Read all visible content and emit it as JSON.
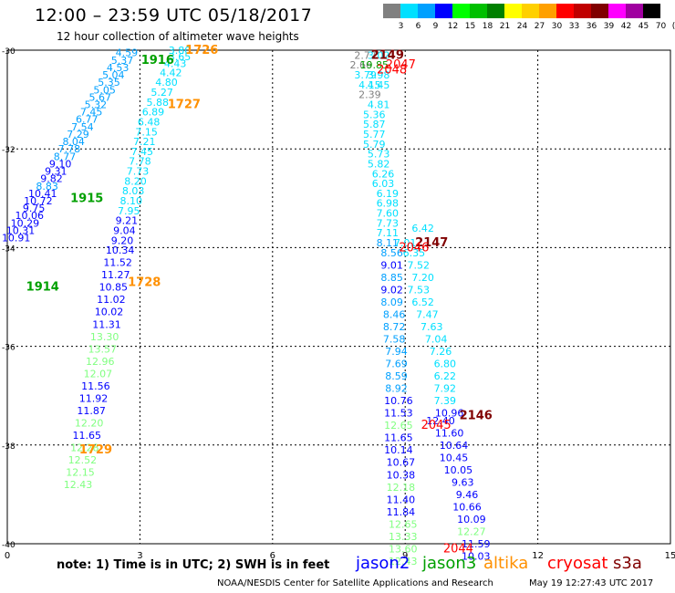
{
  "title": "12:00 – 23:59 UTC 05/18/2017",
  "subtitle": "12 hour collection of altimeter wave heights",
  "colorbar": {
    "labels": [
      "3",
      "6",
      "9",
      "12",
      "15",
      "18",
      "21",
      "24",
      "27",
      "30",
      "33",
      "36",
      "39",
      "42",
      "45",
      "70",
      "(ft)"
    ],
    "colors": [
      "#808080",
      "#00e0ff",
      "#00a0ff",
      "#0000ff",
      "#00ff00",
      "#00c000",
      "#008000",
      "#ffff00",
      "#ffd000",
      "#ffa000",
      "#ff0000",
      "#c00000",
      "#800000",
      "#ff00ff",
      "#a000a0",
      "#000000"
    ]
  },
  "map": {
    "x_ticks": [
      "0",
      "3",
      "6",
      "9",
      "12",
      "15"
    ],
    "y_ticks": [
      "-30",
      "-32",
      "-34",
      "-36",
      "-38",
      "-40"
    ]
  },
  "tracks": [
    {
      "satellite": "jason3",
      "color": "#00a000",
      "labels": [
        {
          "text": "1916",
          "x": 3.4,
          "y": -30.2,
          "bold": true
        },
        {
          "text": "1915",
          "x": 1.8,
          "y": -33.0,
          "bold": true
        },
        {
          "text": "1914",
          "x": 0.8,
          "y": -34.8,
          "bold": true
        }
      ]
    },
    {
      "satellite": "altika",
      "color": "#ff9000",
      "labels": [
        {
          "text": "1726",
          "x": 4.4,
          "y": -30.0,
          "bold": true
        },
        {
          "text": "1727",
          "x": 4.0,
          "y": -31.1,
          "bold": true
        },
        {
          "text": "1728",
          "x": 3.1,
          "y": -34.7,
          "bold": true
        },
        {
          "text": "1729",
          "x": 2.0,
          "y": -38.1,
          "bold": true
        }
      ]
    },
    {
      "satellite": "s3a",
      "color": "#800000",
      "labels": [
        {
          "text": "2149",
          "x": 8.6,
          "y": -30.1,
          "bold": true
        },
        {
          "text": "2147",
          "x": 9.6,
          "y": -33.9,
          "bold": true
        },
        {
          "text": "2146",
          "x": 10.6,
          "y": -37.4,
          "bold": true
        }
      ]
    },
    {
      "satellite": "cryosat",
      "color": "#ff0000",
      "labels": [
        {
          "text": "2048",
          "x": 8.7,
          "y": -30.4,
          "bold": false
        },
        {
          "text": "2047",
          "x": 8.9,
          "y": -30.3,
          "bold": false
        },
        {
          "text": "2046",
          "x": 9.2,
          "y": -34.0,
          "bold": false
        },
        {
          "text": "2045",
          "x": 9.7,
          "y": -37.6,
          "bold": false
        },
        {
          "text": "2044",
          "x": 10.2,
          "y": -40.1,
          "bold": false
        }
      ]
    }
  ],
  "points": [
    {
      "v": "4.59",
      "x": 2.7,
      "y": -30.05,
      "c": "#00a0ff"
    },
    {
      "v": "5.37",
      "x": 2.6,
      "y": -30.2,
      "c": "#00a0ff"
    },
    {
      "v": "4.53",
      "x": 2.5,
      "y": -30.35,
      "c": "#00a0ff"
    },
    {
      "v": "5.04",
      "x": 2.4,
      "y": -30.5,
      "c": "#00a0ff"
    },
    {
      "v": "5.35",
      "x": 2.3,
      "y": -30.65,
      "c": "#00a0ff"
    },
    {
      "v": "5.05",
      "x": 2.2,
      "y": -30.8,
      "c": "#00a0ff"
    },
    {
      "v": "5.67",
      "x": 2.1,
      "y": -30.95,
      "c": "#00a0ff"
    },
    {
      "v": "5.32",
      "x": 2.0,
      "y": -31.1,
      "c": "#00a0ff"
    },
    {
      "v": "7.45",
      "x": 1.9,
      "y": -31.25,
      "c": "#00a0ff"
    },
    {
      "v": "6.77",
      "x": 1.8,
      "y": -31.4,
      "c": "#00a0ff"
    },
    {
      "v": "7.54",
      "x": 1.7,
      "y": -31.55,
      "c": "#00a0ff"
    },
    {
      "v": "7.29",
      "x": 1.6,
      "y": -31.7,
      "c": "#00a0ff"
    },
    {
      "v": "8.04",
      "x": 1.5,
      "y": -31.85,
      "c": "#00a0ff"
    },
    {
      "v": "7.78",
      "x": 1.4,
      "y": -32.0,
      "c": "#00a0ff"
    },
    {
      "v": "8.77",
      "x": 1.3,
      "y": -32.15,
      "c": "#00a0ff"
    },
    {
      "v": "9.10",
      "x": 1.2,
      "y": -32.3,
      "c": "#0000ff"
    },
    {
      "v": "9.31",
      "x": 1.1,
      "y": -32.45,
      "c": "#0000ff"
    },
    {
      "v": "9.82",
      "x": 1.0,
      "y": -32.6,
      "c": "#0000ff"
    },
    {
      "v": "8.83",
      "x": 0.9,
      "y": -32.75,
      "c": "#00a0ff"
    },
    {
      "v": "10.41",
      "x": 0.8,
      "y": -32.9,
      "c": "#0000ff"
    },
    {
      "v": "10.72",
      "x": 0.7,
      "y": -33.05,
      "c": "#0000ff"
    },
    {
      "v": "9.75",
      "x": 0.6,
      "y": -33.2,
      "c": "#0000ff"
    },
    {
      "v": "10.06",
      "x": 0.5,
      "y": -33.35,
      "c": "#0000ff"
    },
    {
      "v": "10.29",
      "x": 0.4,
      "y": -33.5,
      "c": "#0000ff"
    },
    {
      "v": "10.31",
      "x": 0.3,
      "y": -33.65,
      "c": "#0000ff"
    },
    {
      "v": "10.91",
      "x": 0.2,
      "y": -33.8,
      "c": "#0000ff"
    },
    {
      "v": "3.80",
      "x": 3.9,
      "y": -30.0,
      "c": "#00e0ff"
    },
    {
      "v": "3.65",
      "x": 3.9,
      "y": -30.13,
      "c": "#00e0ff"
    },
    {
      "v": "4.43",
      "x": 3.8,
      "y": -30.27,
      "c": "#00e0ff"
    },
    {
      "v": "4.42",
      "x": 3.7,
      "y": -30.45,
      "c": "#00e0ff"
    },
    {
      "v": "4.80",
      "x": 3.6,
      "y": -30.65,
      "c": "#00e0ff"
    },
    {
      "v": "5.27",
      "x": 3.5,
      "y": -30.85,
      "c": "#00e0ff"
    },
    {
      "v": "5.88",
      "x": 3.4,
      "y": -31.05,
      "c": "#00e0ff"
    },
    {
      "v": "6.89",
      "x": 3.3,
      "y": -31.25,
      "c": "#00e0ff"
    },
    {
      "v": "6.48",
      "x": 3.2,
      "y": -31.45,
      "c": "#00e0ff"
    },
    {
      "v": "7.15",
      "x": 3.15,
      "y": -31.65,
      "c": "#00e0ff"
    },
    {
      "v": "7.21",
      "x": 3.1,
      "y": -31.85,
      "c": "#00e0ff"
    },
    {
      "v": "7.45",
      "x": 3.05,
      "y": -32.05,
      "c": "#00e0ff"
    },
    {
      "v": "7.78",
      "x": 3.0,
      "y": -32.25,
      "c": "#00e0ff"
    },
    {
      "v": "7.73",
      "x": 2.95,
      "y": -32.45,
      "c": "#00e0ff"
    },
    {
      "v": "8.20",
      "x": 2.9,
      "y": -32.65,
      "c": "#00e0ff"
    },
    {
      "v": "8.03",
      "x": 2.85,
      "y": -32.85,
      "c": "#00e0ff"
    },
    {
      "v": "8.10",
      "x": 2.8,
      "y": -33.05,
      "c": "#00e0ff"
    },
    {
      "v": "7.95",
      "x": 2.75,
      "y": -33.25,
      "c": "#00e0ff"
    },
    {
      "v": "9.21",
      "x": 2.7,
      "y": -33.45,
      "c": "#0000ff"
    },
    {
      "v": "9.04",
      "x": 2.65,
      "y": -33.65,
      "c": "#0000ff"
    },
    {
      "v": "9.20",
      "x": 2.6,
      "y": -33.85,
      "c": "#0000ff"
    },
    {
      "v": "10.34",
      "x": 2.55,
      "y": -34.05,
      "c": "#0000ff"
    },
    {
      "v": "11.52",
      "x": 2.5,
      "y": -34.3,
      "c": "#0000ff"
    },
    {
      "v": "11.27",
      "x": 2.45,
      "y": -34.55,
      "c": "#0000ff"
    },
    {
      "v": "10.85",
      "x": 2.4,
      "y": -34.8,
      "c": "#0000ff"
    },
    {
      "v": "11.02",
      "x": 2.35,
      "y": -35.05,
      "c": "#0000ff"
    },
    {
      "v": "10.02",
      "x": 2.3,
      "y": -35.3,
      "c": "#0000ff"
    },
    {
      "v": "11.31",
      "x": 2.25,
      "y": -35.55,
      "c": "#0000ff"
    },
    {
      "v": "13.30",
      "x": 2.2,
      "y": -35.8,
      "c": "#80ff80"
    },
    {
      "v": "13.57",
      "x": 2.15,
      "y": -36.05,
      "c": "#80ff80"
    },
    {
      "v": "12.96",
      "x": 2.1,
      "y": -36.3,
      "c": "#80ff80"
    },
    {
      "v": "12.07",
      "x": 2.05,
      "y": -36.55,
      "c": "#80ff80"
    },
    {
      "v": "11.56",
      "x": 2.0,
      "y": -36.8,
      "c": "#0000ff"
    },
    {
      "v": "11.92",
      "x": 1.95,
      "y": -37.05,
      "c": "#0000ff"
    },
    {
      "v": "11.87",
      "x": 1.9,
      "y": -37.3,
      "c": "#0000ff"
    },
    {
      "v": "12.20",
      "x": 1.85,
      "y": -37.55,
      "c": "#80ff80"
    },
    {
      "v": "11.65",
      "x": 1.8,
      "y": -37.8,
      "c": "#0000ff"
    },
    {
      "v": "12.28",
      "x": 1.75,
      "y": -38.05,
      "c": "#80ff80"
    },
    {
      "v": "12.52",
      "x": 1.7,
      "y": -38.3,
      "c": "#80ff80"
    },
    {
      "v": "12.15",
      "x": 1.65,
      "y": -38.55,
      "c": "#80ff80"
    },
    {
      "v": "12.43",
      "x": 1.6,
      "y": -38.8,
      "c": "#80ff80"
    },
    {
      "v": "2.77",
      "x": 8.1,
      "y": -30.1,
      "c": "#808080"
    },
    {
      "v": "3.02",
      "x": 8.4,
      "y": -30.1,
      "c": "#00e0ff"
    },
    {
      "v": "2.66",
      "x": 8.0,
      "y": -30.3,
      "c": "#808080"
    },
    {
      "v": "19.85",
      "x": 8.3,
      "y": -30.3,
      "c": "#00a000"
    },
    {
      "v": "3.79",
      "x": 8.1,
      "y": -30.5,
      "c": "#00e0ff"
    },
    {
      "v": "3.98",
      "x": 8.4,
      "y": -30.5,
      "c": "#00e0ff"
    },
    {
      "v": "4.15",
      "x": 8.2,
      "y": -30.7,
      "c": "#00e0ff"
    },
    {
      "v": "4.45",
      "x": 8.4,
      "y": -30.7,
      "c": "#00e0ff"
    },
    {
      "v": "2.39",
      "x": 8.2,
      "y": -30.9,
      "c": "#808080"
    },
    {
      "v": "4.81",
      "x": 8.4,
      "y": -31.1,
      "c": "#00e0ff"
    },
    {
      "v": "5.36",
      "x": 8.3,
      "y": -31.3,
      "c": "#00e0ff"
    },
    {
      "v": "5.87",
      "x": 8.3,
      "y": -31.5,
      "c": "#00e0ff"
    },
    {
      "v": "5.77",
      "x": 8.3,
      "y": -31.7,
      "c": "#00e0ff"
    },
    {
      "v": "5.79",
      "x": 8.3,
      "y": -31.9,
      "c": "#00e0ff"
    },
    {
      "v": "5.73",
      "x": 8.4,
      "y": -32.1,
      "c": "#00e0ff"
    },
    {
      "v": "5.82",
      "x": 8.4,
      "y": -32.3,
      "c": "#00e0ff"
    },
    {
      "v": "6.26",
      "x": 8.5,
      "y": -32.5,
      "c": "#00e0ff"
    },
    {
      "v": "6.03",
      "x": 8.5,
      "y": -32.7,
      "c": "#00e0ff"
    },
    {
      "v": "6.19",
      "x": 8.6,
      "y": -32.9,
      "c": "#00e0ff"
    },
    {
      "v": "6.98",
      "x": 8.6,
      "y": -33.1,
      "c": "#00e0ff"
    },
    {
      "v": "7.60",
      "x": 8.6,
      "y": -33.3,
      "c": "#00e0ff"
    },
    {
      "v": "7.73",
      "x": 8.6,
      "y": -33.5,
      "c": "#00e0ff"
    },
    {
      "v": "7.11",
      "x": 8.6,
      "y": -33.7,
      "c": "#00e0ff"
    },
    {
      "v": "8.11",
      "x": 8.6,
      "y": -33.9,
      "c": "#00a0ff"
    },
    {
      "v": "8.56",
      "x": 8.7,
      "y": -34.1,
      "c": "#00a0ff"
    },
    {
      "v": "9.01",
      "x": 8.7,
      "y": -34.35,
      "c": "#0000ff"
    },
    {
      "v": "8.85",
      "x": 8.7,
      "y": -34.6,
      "c": "#00a0ff"
    },
    {
      "v": "9.02",
      "x": 8.7,
      "y": -34.85,
      "c": "#0000ff"
    },
    {
      "v": "8.09",
      "x": 8.7,
      "y": -35.1,
      "c": "#00a0ff"
    },
    {
      "v": "8.46",
      "x": 8.75,
      "y": -35.35,
      "c": "#00a0ff"
    },
    {
      "v": "8.72",
      "x": 8.75,
      "y": -35.6,
      "c": "#00a0ff"
    },
    {
      "v": "7.58",
      "x": 8.75,
      "y": -35.85,
      "c": "#00a0ff"
    },
    {
      "v": "7.94",
      "x": 8.8,
      "y": -36.1,
      "c": "#00a0ff"
    },
    {
      "v": "7.69",
      "x": 8.8,
      "y": -36.35,
      "c": "#00a0ff"
    },
    {
      "v": "8.59",
      "x": 8.8,
      "y": -36.6,
      "c": "#00a0ff"
    },
    {
      "v": "8.92",
      "x": 8.8,
      "y": -36.85,
      "c": "#00a0ff"
    },
    {
      "v": "10.76",
      "x": 8.85,
      "y": -37.1,
      "c": "#0000ff"
    },
    {
      "v": "11.53",
      "x": 8.85,
      "y": -37.35,
      "c": "#0000ff"
    },
    {
      "v": "12.65",
      "x": 8.85,
      "y": -37.6,
      "c": "#80ff80"
    },
    {
      "v": "11.65",
      "x": 8.85,
      "y": -37.85,
      "c": "#0000ff"
    },
    {
      "v": "10.14",
      "x": 8.85,
      "y": -38.1,
      "c": "#0000ff"
    },
    {
      "v": "10.67",
      "x": 8.9,
      "y": -38.35,
      "c": "#0000ff"
    },
    {
      "v": "10.38",
      "x": 8.9,
      "y": -38.6,
      "c": "#0000ff"
    },
    {
      "v": "12.18",
      "x": 8.9,
      "y": -38.85,
      "c": "#80ff80"
    },
    {
      "v": "11.40",
      "x": 8.9,
      "y": -39.1,
      "c": "#0000ff"
    },
    {
      "v": "11.84",
      "x": 8.9,
      "y": -39.35,
      "c": "#0000ff"
    },
    {
      "v": "12.65",
      "x": 8.95,
      "y": -39.6,
      "c": "#80ff80"
    },
    {
      "v": "13.33",
      "x": 8.95,
      "y": -39.85,
      "c": "#80ff80"
    },
    {
      "v": "13.60",
      "x": 8.95,
      "y": -40.1,
      "c": "#80ff80"
    },
    {
      "v": "12.43",
      "x": 8.95,
      "y": -40.35,
      "c": "#80ff80"
    },
    {
      "v": "6.42",
      "x": 9.4,
      "y": -33.6,
      "c": "#00e0ff"
    },
    {
      "v": "7.01",
      "x": 9.0,
      "y": -33.9,
      "c": "#00e0ff"
    },
    {
      "v": "6.35",
      "x": 9.2,
      "y": -34.1,
      "c": "#00e0ff"
    },
    {
      "v": "7.52",
      "x": 9.3,
      "y": -34.35,
      "c": "#00e0ff"
    },
    {
      "v": "7.20",
      "x": 9.4,
      "y": -34.6,
      "c": "#00e0ff"
    },
    {
      "v": "7.53",
      "x": 9.3,
      "y": -34.85,
      "c": "#00e0ff"
    },
    {
      "v": "6.52",
      "x": 9.4,
      "y": -35.1,
      "c": "#00e0ff"
    },
    {
      "v": "7.47",
      "x": 9.5,
      "y": -35.35,
      "c": "#00e0ff"
    },
    {
      "v": "7.63",
      "x": 9.6,
      "y": -35.6,
      "c": "#00e0ff"
    },
    {
      "v": "7.04",
      "x": 9.7,
      "y": -35.85,
      "c": "#00e0ff"
    },
    {
      "v": "7.26",
      "x": 9.8,
      "y": -36.1,
      "c": "#00e0ff"
    },
    {
      "v": "6.80",
      "x": 9.9,
      "y": -36.35,
      "c": "#00e0ff"
    },
    {
      "v": "6.22",
      "x": 9.9,
      "y": -36.6,
      "c": "#00e0ff"
    },
    {
      "v": "7.92",
      "x": 9.9,
      "y": -36.85,
      "c": "#00e0ff"
    },
    {
      "v": "7.39",
      "x": 9.9,
      "y": -37.1,
      "c": "#00e0ff"
    },
    {
      "v": "10.96",
      "x": 10.0,
      "y": -37.35,
      "c": "#0000ff"
    },
    {
      "v": "12.40",
      "x": 9.8,
      "y": -37.5,
      "c": "#0000ff"
    },
    {
      "v": "11.60",
      "x": 10.0,
      "y": -37.75,
      "c": "#0000ff"
    },
    {
      "v": "10.64",
      "x": 10.1,
      "y": -38.0,
      "c": "#0000ff"
    },
    {
      "v": "10.45",
      "x": 10.1,
      "y": -38.25,
      "c": "#0000ff"
    },
    {
      "v": "10.05",
      "x": 10.2,
      "y": -38.5,
      "c": "#0000ff"
    },
    {
      "v": "9.63",
      "x": 10.3,
      "y": -38.75,
      "c": "#0000ff"
    },
    {
      "v": "9.46",
      "x": 10.4,
      "y": -39.0,
      "c": "#0000ff"
    },
    {
      "v": "10.66",
      "x": 10.4,
      "y": -39.25,
      "c": "#0000ff"
    },
    {
      "v": "10.09",
      "x": 10.5,
      "y": -39.5,
      "c": "#0000ff"
    },
    {
      "v": "12.27",
      "x": 10.5,
      "y": -39.75,
      "c": "#80ff80"
    },
    {
      "v": "11.59",
      "x": 10.6,
      "y": -40.0,
      "c": "#0000ff"
    },
    {
      "v": "10.03",
      "x": 10.6,
      "y": -40.25,
      "c": "#0000ff"
    }
  ],
  "footer": {
    "note": "note:  1) Time is in UTC;  2) SWH is in feet",
    "legend": [
      {
        "name": "jason2",
        "color": "#0000ff"
      },
      {
        "name": "jason3",
        "color": "#00a000"
      },
      {
        "name": "altika",
        "color": "#ff9000"
      },
      {
        "name": "cryosat",
        "color": "#ff0000"
      },
      {
        "name": "s3a",
        "color": "#800000"
      }
    ],
    "credit": "NOAA/NESDIS Center for Satellite Applications and Research",
    "timestamp": "May 19 12:27:43 UTC 2017"
  }
}
